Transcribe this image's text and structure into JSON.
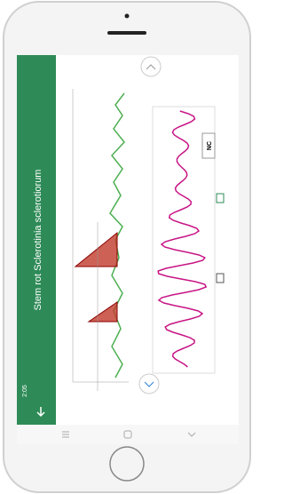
{
  "status": {
    "time": "2:05"
  },
  "header": {
    "title": "Stem rot Sclerotinia sclerotiorum"
  },
  "chart": {
    "label": "NC"
  }
}
